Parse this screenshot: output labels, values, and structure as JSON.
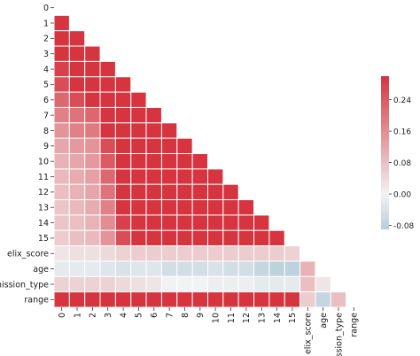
{
  "chart_data": {
    "type": "heatmap",
    "variant": "lower-triangle correlation matrix",
    "labels": [
      "0",
      "1",
      "2",
      "3",
      "4",
      "5",
      "6",
      "7",
      "8",
      "9",
      "10",
      "11",
      "12",
      "13",
      "14",
      "15",
      "elix_score",
      "age",
      "admission_type",
      "range"
    ],
    "x_tick_labels": [
      "0",
      "1",
      "2",
      "3",
      "4",
      "5",
      "6",
      "7",
      "8",
      "9",
      "10",
      "11",
      "12",
      "13",
      "14",
      "15",
      "elix_score",
      "age",
      "lmission_type",
      "range"
    ],
    "y_tick_labels": [
      "0",
      "1",
      "2",
      "3",
      "4",
      "5",
      "6",
      "7",
      "8",
      "9",
      "10",
      "11",
      "12",
      "13",
      "14",
      "15",
      "elix_score",
      "age",
      "admission_type",
      "range"
    ],
    "values": [
      [],
      [
        0.3
      ],
      [
        0.3,
        0.3
      ],
      [
        0.3,
        0.3,
        0.3
      ],
      [
        0.28,
        0.3,
        0.3,
        0.3
      ],
      [
        0.26,
        0.3,
        0.3,
        0.3,
        0.3
      ],
      [
        0.22,
        0.26,
        0.3,
        0.3,
        0.3,
        0.3
      ],
      [
        0.18,
        0.2,
        0.22,
        0.3,
        0.3,
        0.3,
        0.3
      ],
      [
        0.15,
        0.18,
        0.19,
        0.3,
        0.3,
        0.3,
        0.3,
        0.3
      ],
      [
        0.12,
        0.14,
        0.15,
        0.26,
        0.3,
        0.3,
        0.3,
        0.3,
        0.3
      ],
      [
        0.1,
        0.12,
        0.14,
        0.24,
        0.3,
        0.3,
        0.3,
        0.3,
        0.3,
        0.3
      ],
      [
        0.09,
        0.11,
        0.13,
        0.22,
        0.3,
        0.3,
        0.3,
        0.3,
        0.3,
        0.3,
        0.3
      ],
      [
        0.08,
        0.1,
        0.12,
        0.2,
        0.3,
        0.3,
        0.3,
        0.3,
        0.3,
        0.3,
        0.3,
        0.3
      ],
      [
        0.07,
        0.09,
        0.11,
        0.18,
        0.3,
        0.3,
        0.3,
        0.3,
        0.3,
        0.3,
        0.3,
        0.3,
        0.3
      ],
      [
        0.07,
        0.08,
        0.1,
        0.16,
        0.28,
        0.3,
        0.3,
        0.3,
        0.3,
        0.3,
        0.3,
        0.3,
        0.3,
        0.3
      ],
      [
        0.06,
        0.08,
        0.09,
        0.15,
        0.26,
        0.3,
        0.3,
        0.3,
        0.3,
        0.3,
        0.3,
        0.3,
        0.3,
        0.3,
        0.3
      ],
      [
        0.02,
        0.03,
        0.03,
        0.04,
        0.05,
        0.06,
        0.06,
        0.06,
        0.06,
        0.06,
        0.06,
        0.06,
        0.06,
        0.06,
        0.06,
        0.05
      ],
      [
        -0.02,
        -0.02,
        -0.02,
        -0.03,
        -0.04,
        -0.03,
        -0.03,
        -0.05,
        -0.05,
        -0.05,
        -0.04,
        -0.05,
        -0.05,
        -0.07,
        -0.08,
        -0.08,
        0.1
      ],
      [
        0.05,
        0.05,
        0.05,
        0.05,
        0.04,
        0.03,
        0.02,
        0.0,
        0.0,
        0.0,
        -0.01,
        -0.01,
        -0.01,
        -0.02,
        -0.02,
        -0.02,
        0.08,
        0.02
      ],
      [
        0.3,
        0.3,
        0.3,
        0.3,
        0.3,
        0.3,
        0.3,
        0.3,
        0.3,
        0.3,
        0.3,
        0.3,
        0.3,
        0.3,
        0.3,
        0.3,
        0.06,
        -0.07,
        0.08
      ]
    ],
    "colorbar": {
      "min": -0.09,
      "max": 0.3,
      "ticks": [
        -0.08,
        0.0,
        0.08,
        0.16,
        0.24
      ],
      "tick_labels": [
        "-0.08",
        "0.00",
        "0.08",
        "0.16",
        "0.24"
      ]
    },
    "colors": {
      "negative": "#b8cedc",
      "neutral": "#f2f2f2",
      "positive": "#d6343f",
      "cell_border": "#ffffff"
    },
    "title": "",
    "xlabel": "",
    "ylabel": ""
  }
}
